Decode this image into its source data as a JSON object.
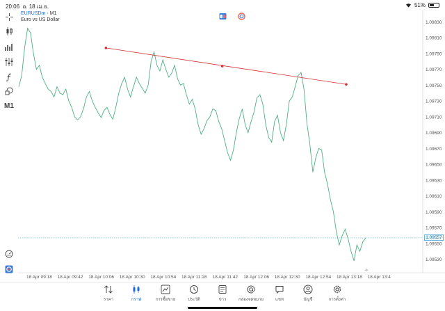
{
  "status_bar": {
    "time": "20:06",
    "date": "อ. 18 เม.ย.",
    "battery": "51%",
    "battery_level": 0.51
  },
  "chart": {
    "symbol": "EURUSDm",
    "timeframe": "M1",
    "separator": "›",
    "description": "Euro vs US Dollar",
    "timeframe_button": "M1",
    "current_price": "1.09557",
    "line_color": "#4caf82",
    "trendline_color": "#d32f2f",
    "bid_line_color": "#5ab7c9"
  },
  "toolbar": {
    "tools": [
      "crosshair-icon",
      "candlestick-icon",
      "bar-chart-icon",
      "indicators-icon",
      "function-icon",
      "shapes-icon"
    ],
    "timeframe": "M1"
  },
  "chart_data": {
    "type": "line",
    "ylim": [
      1.0952,
      1.0984
    ],
    "y_ticks": [
      "1.09830",
      "1.09810",
      "1.09790",
      "1.09770",
      "1.09750",
      "1.09730",
      "1.09710",
      "1.09690",
      "1.09670",
      "1.09650",
      "1.09630",
      "1.09610",
      "1.09590",
      "1.09570",
      "1.09550",
      "1.09530"
    ],
    "x_ticks": [
      "18 Apr 09:18",
      "18 Apr 09:42",
      "18 Apr 10:06",
      "18 Apr 10:30",
      "18 Apr 10:54",
      "18 Apr 11:18",
      "18 Apr 11:42",
      "18 Apr 12:06",
      "18 Apr 12:30",
      "18 Apr 12:54",
      "18 Apr 13:18",
      "18 Apr 13:4"
    ],
    "series": [
      {
        "values": [
          1.09748,
          1.09762,
          1.09798,
          1.09822,
          1.09816,
          1.0979,
          1.0977,
          1.09775,
          1.0976,
          1.09752,
          1.09745,
          1.09742,
          1.09735,
          1.09748,
          1.0974,
          1.09738,
          1.09745,
          1.0973,
          1.09722,
          1.0971,
          1.09706,
          1.0971,
          1.0972,
          1.09735,
          1.09742,
          1.0973,
          1.09722,
          1.09715,
          1.09709,
          1.09718,
          1.09722,
          1.09713,
          1.09707,
          1.09722,
          1.0974,
          1.09752,
          1.0976,
          1.09745,
          1.09735,
          1.09748,
          1.0976,
          1.09752,
          1.09746,
          1.0974,
          1.0975,
          1.0978,
          1.09792,
          1.09775,
          1.09768,
          1.09782,
          1.0977,
          1.0976,
          1.09765,
          1.09775,
          1.09758,
          1.0975,
          1.09752,
          1.09738,
          1.09726,
          1.09732,
          1.0972,
          1.097,
          1.09688,
          1.09695,
          1.09705,
          1.0971,
          1.0972,
          1.09718,
          1.09704,
          1.09695,
          1.0968,
          1.09665,
          1.09655,
          1.09668,
          1.0969,
          1.09708,
          1.0972,
          1.097,
          1.0969,
          1.09704,
          1.09716,
          1.09734,
          1.09738,
          1.09726,
          1.097,
          1.09684,
          1.09678,
          1.09704,
          1.09712,
          1.0969,
          1.0968,
          1.097,
          1.0973,
          1.09735,
          1.09748,
          1.09762,
          1.09766,
          1.09745,
          1.09702,
          1.09675,
          1.0964,
          1.09658,
          1.0967,
          1.09668,
          1.0964,
          1.09625,
          1.09605,
          1.0959,
          1.09565,
          1.09548,
          1.0956,
          1.09568,
          1.09556,
          1.0954,
          1.09528,
          1.09548,
          1.0954,
          1.09552,
          1.09557
        ]
      }
    ],
    "trendline": {
      "start": {
        "time": "18 Apr 10:12",
        "price": 1.09797
      },
      "mid": {
        "time": "18 Apr 11:42",
        "price": 1.09774
      },
      "end": {
        "time": "18 Apr 13:18",
        "price": 1.09751
      }
    },
    "current_price_line": 1.09557,
    "grid": false
  },
  "tabs": [
    {
      "label": "ราคา",
      "icon": "arrows-updown-icon",
      "active": false
    },
    {
      "label": "กราฟ",
      "icon": "chart-bars-icon",
      "active": true
    },
    {
      "label": "การซื้อขาย",
      "icon": "trade-chart-icon",
      "active": false
    },
    {
      "label": "ประวัติ",
      "icon": "history-icon",
      "active": false
    },
    {
      "label": "ข่าว",
      "icon": "news-icon",
      "active": false
    },
    {
      "label": "กล่องจดหมาย",
      "icon": "at-sign-icon",
      "active": false
    },
    {
      "label": "แชท",
      "icon": "chat-icon",
      "active": false
    },
    {
      "label": "บัญชี",
      "icon": "account-icon",
      "active": false
    },
    {
      "label": "การตั้งค่า",
      "icon": "gear-icon",
      "active": false
    }
  ]
}
